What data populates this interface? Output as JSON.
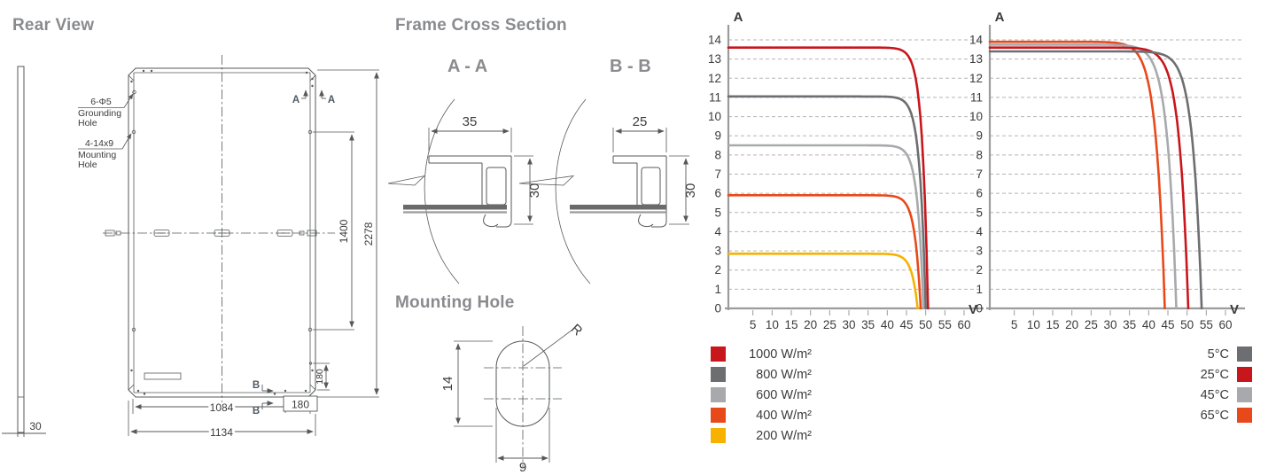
{
  "titles": {
    "rear_view": "Rear View",
    "frame_cross_section": "Frame Cross Section",
    "mounting_hole": "Mounting Hole",
    "section_aa": "A - A",
    "section_bb": "B - B"
  },
  "rear_view": {
    "grounding_label": [
      "6-Φ5",
      "Grounding",
      "Hole"
    ],
    "mounting_label": [
      "4-14x9",
      "Mounting",
      "Hole"
    ],
    "dims": {
      "outer_width": "1134",
      "inner_width": "1084",
      "outer_height": "2278",
      "mounting_span": "1400",
      "corner_offset_h": "180",
      "corner_offset_v": "180",
      "frame_thickness": "30"
    },
    "marks": {
      "a": "A",
      "b": "B"
    }
  },
  "frame_sections": {
    "aa": {
      "width": "35",
      "height": "30"
    },
    "bb": {
      "width": "25",
      "height": "30"
    }
  },
  "mounting_hole": {
    "height": "14",
    "width": "9",
    "radius": "R"
  },
  "chart_data": [
    {
      "type": "line",
      "name": "iv-curve-irradiance",
      "xlabel": "V",
      "ylabel": "A",
      "xlim": [
        0,
        62
      ],
      "ylim": [
        0,
        14
      ],
      "x_ticks": [
        5,
        10,
        15,
        20,
        25,
        30,
        35,
        40,
        45,
        50,
        55,
        60
      ],
      "y_ticks": [
        0,
        1,
        2,
        3,
        4,
        5,
        6,
        7,
        8,
        9,
        10,
        11,
        12,
        13,
        14
      ],
      "grid": "horizontal-dashed",
      "legend_position": "bottom-left",
      "knee": 1.5,
      "series": [
        {
          "name": "1000 W/m²",
          "color": "#C8161D",
          "isc": 13.6,
          "voc": 50.6
        },
        {
          "name": "800 W/m²",
          "color": "#6D6E71",
          "isc": 11.05,
          "voc": 50.0
        },
        {
          "name": "600 W/m²",
          "color": "#A7A9AC",
          "isc": 8.5,
          "voc": 49.4
        },
        {
          "name": "400 W/m²",
          "color": "#E8491B",
          "isc": 5.9,
          "voc": 48.7
        },
        {
          "name": "200 W/m²",
          "color": "#F7B200",
          "isc": 2.85,
          "voc": 47.9
        }
      ]
    },
    {
      "type": "line",
      "name": "iv-curve-temperature",
      "xlabel": "V",
      "ylabel": "A",
      "xlim": [
        0,
        62
      ],
      "ylim": [
        0,
        14
      ],
      "x_ticks": [
        5,
        10,
        15,
        20,
        25,
        30,
        35,
        40,
        45,
        50,
        55,
        60
      ],
      "y_ticks": [
        0,
        1,
        2,
        3,
        4,
        5,
        6,
        7,
        8,
        9,
        10,
        11,
        12,
        13,
        14
      ],
      "grid": "horizontal-dashed",
      "legend_position": "bottom-right",
      "knee": 2.3,
      "series": [
        {
          "name": "5°C",
          "color": "#6D6E71",
          "isc": 13.4,
          "voc": 53.8
        },
        {
          "name": "25°C",
          "color": "#C8161D",
          "isc": 13.6,
          "voc": 50.3
        },
        {
          "name": "45°C",
          "color": "#A7A9AC",
          "isc": 13.75,
          "voc": 47.2
        },
        {
          "name": "65°C",
          "color": "#E8491B",
          "isc": 13.9,
          "voc": 44.2
        }
      ]
    }
  ]
}
